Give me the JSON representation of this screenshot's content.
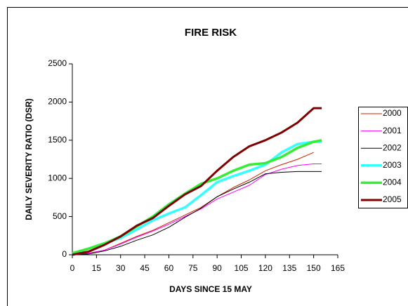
{
  "chart_data": {
    "type": "line",
    "title": "FIRE RISK",
    "x_label": "DAYS SINCE 15 MAY",
    "y_label": "DAILY SEVERITY RATIO (DSR)",
    "x": [
      0,
      10,
      20,
      30,
      40,
      50,
      60,
      70,
      80,
      90,
      100,
      110,
      120,
      130,
      140,
      150,
      155
    ],
    "series": [
      {
        "name": "2000",
        "color": "#cc2200",
        "width": 1,
        "values": [
          0,
          20,
          60,
          150,
          240,
          320,
          420,
          520,
          620,
          760,
          880,
          980,
          1100,
          1180,
          1250,
          1340,
          null
        ]
      },
      {
        "name": "2001",
        "color": "#ff00ff",
        "width": 1,
        "values": [
          0,
          20,
          60,
          140,
          230,
          310,
          400,
          500,
          600,
          730,
          820,
          910,
          1050,
          1120,
          1170,
          1190,
          1190
        ]
      },
      {
        "name": "2002",
        "color": "#000000",
        "width": 1,
        "values": [
          0,
          10,
          50,
          110,
          190,
          260,
          360,
          490,
          610,
          760,
          860,
          950,
          1060,
          1080,
          1090,
          1090,
          1090
        ]
      },
      {
        "name": "2003",
        "color": "#33ffff",
        "width": 3.5,
        "values": [
          0,
          80,
          150,
          220,
          330,
          450,
          540,
          620,
          780,
          950,
          1030,
          1100,
          1180,
          1340,
          1450,
          1480,
          1480
        ]
      },
      {
        "name": "2004",
        "color": "#33ee33",
        "width": 3.5,
        "values": [
          20,
          80,
          150,
          240,
          370,
          500,
          660,
          800,
          930,
          1000,
          1100,
          1180,
          1200,
          1280,
          1400,
          1480,
          1500
        ]
      },
      {
        "name": "2005",
        "color": "#800000",
        "width": 3,
        "values": [
          0,
          40,
          130,
          240,
          380,
          480,
          640,
          790,
          900,
          1100,
          1280,
          1420,
          1500,
          1600,
          1730,
          1920,
          1920
        ]
      }
    ],
    "xlim": [
      0,
      165
    ],
    "xticks": [
      0,
      15,
      30,
      45,
      60,
      75,
      90,
      105,
      120,
      135,
      150,
      165
    ],
    "ylim": [
      0,
      2500
    ],
    "yticks": [
      0,
      500,
      1000,
      1500,
      2000,
      2500
    ],
    "grid": false,
    "legend": "right"
  }
}
